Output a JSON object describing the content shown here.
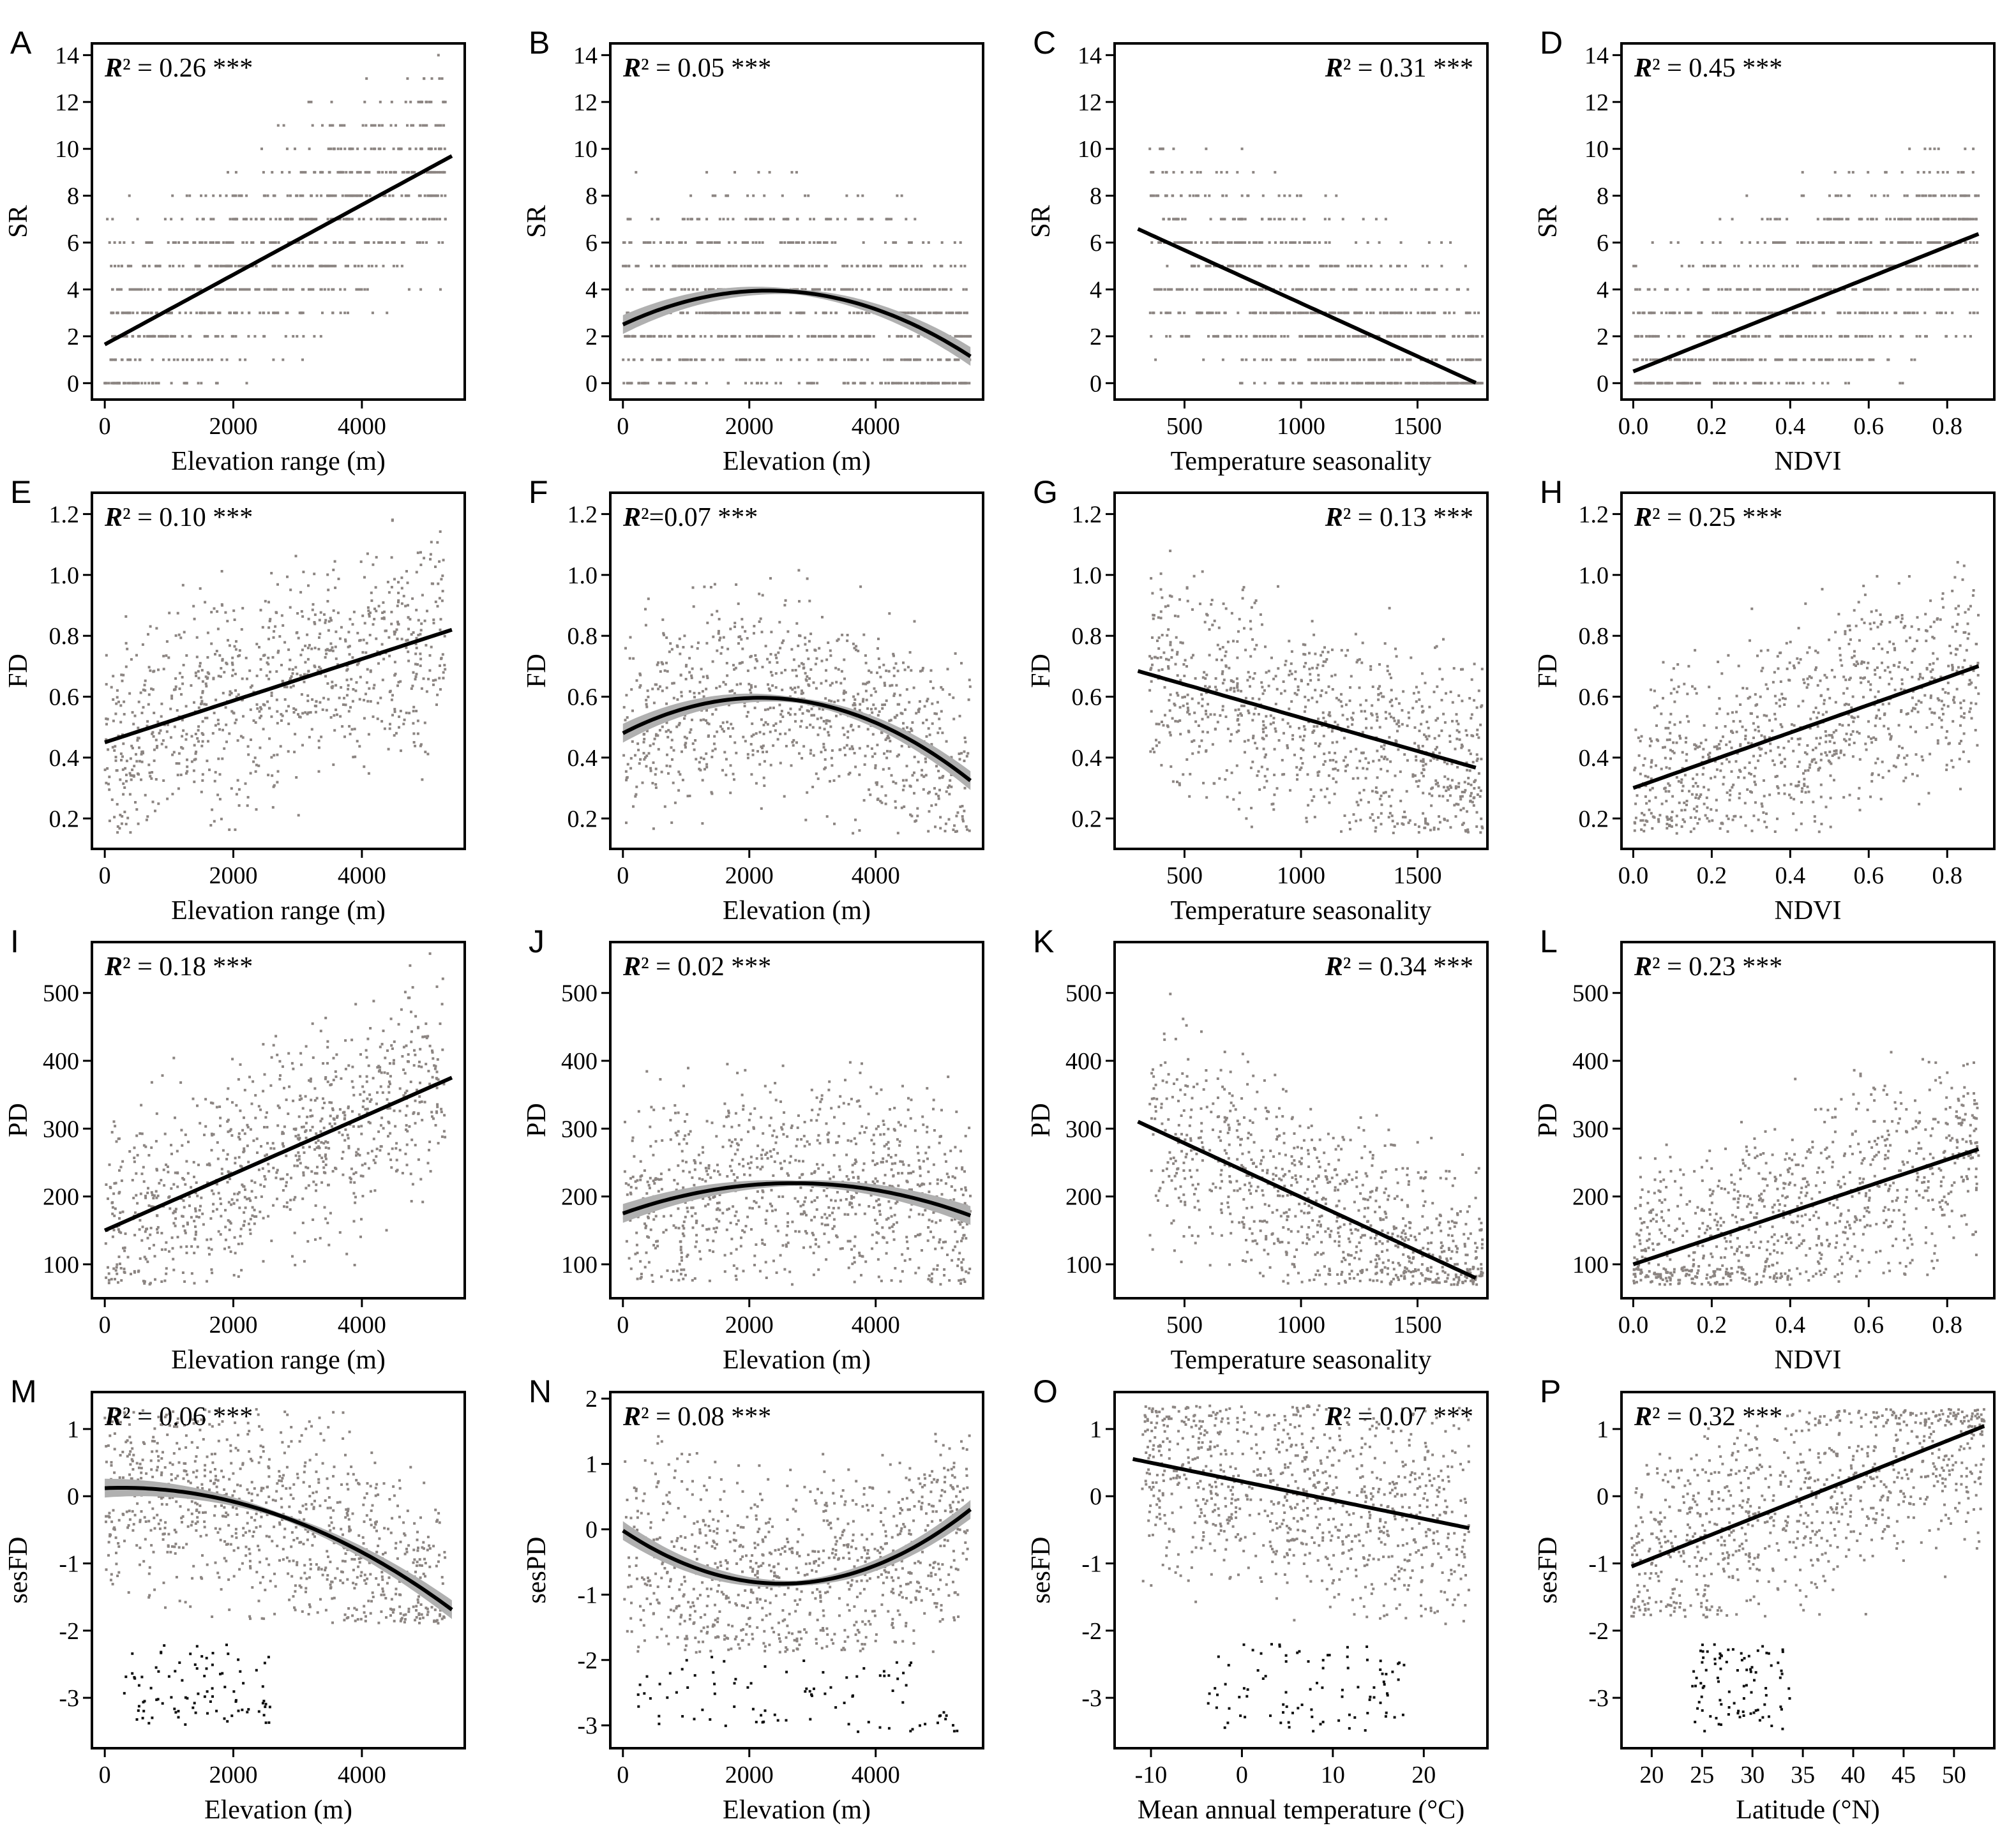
{
  "figure": {
    "background": "#ffffff",
    "point_color": "#8c8582",
    "outlier_color": "#111111",
    "line_color": "#000000",
    "ci_color": "#b0b0b0"
  },
  "chart_data": [
    {
      "letter": "A",
      "type": "scatter",
      "xlabel": "Elevation range (m)",
      "ylabel": "SR",
      "r2_value": "0.26",
      "r2_sig": "***",
      "r2_align": "left",
      "xlim": [
        -200,
        5600
      ],
      "ylim": [
        -0.7,
        14.5
      ],
      "xticks": [
        0,
        2000,
        4000
      ],
      "yticks": [
        0,
        2,
        4,
        6,
        8,
        10,
        12,
        14
      ],
      "fit": {
        "kind": "linear",
        "coef": [
          1.65,
          0.00149
        ],
        "x_range": [
          0,
          5400
        ],
        "ci": false
      },
      "points": {
        "mode": "discrete",
        "x_min": 0,
        "x_max": 5300,
        "levels": [
          0,
          1,
          2,
          3,
          4,
          5,
          6,
          7,
          8,
          9,
          10,
          11,
          12,
          13,
          14
        ],
        "seed": 11
      }
    },
    {
      "letter": "B",
      "type": "scatter",
      "xlabel": "Elevation (m)",
      "ylabel": "SR",
      "r2_value": "0.05",
      "r2_sig": "***",
      "r2_align": "left",
      "xlim": [
        -200,
        5700
      ],
      "ylim": [
        -0.7,
        14.5
      ],
      "xticks": [
        0,
        2000,
        4000
      ],
      "yticks": [
        0,
        2,
        4,
        6,
        8,
        10,
        12,
        14
      ],
      "fit": {
        "kind": "poly",
        "coef": [
          2.5,
          0.00126,
          -2.74e-07
        ],
        "x_range": [
          0,
          5500
        ],
        "ci": true
      },
      "points": {
        "mode": "discrete",
        "x_min": 0,
        "x_max": 5500,
        "levels": [
          0,
          1,
          2,
          3,
          4,
          5,
          6,
          7,
          8,
          9,
          10,
          11,
          12,
          13
        ],
        "seed": 12
      }
    },
    {
      "letter": "C",
      "type": "scatter",
      "xlabel": "Temperature seasonality",
      "ylabel": "SR",
      "r2_value": "0.31",
      "r2_sig": "***",
      "r2_align": "right",
      "xlim": [
        200,
        1800
      ],
      "ylim": [
        -0.7,
        14.5
      ],
      "xticks": [
        500,
        1000,
        1500
      ],
      "yticks": [
        0,
        2,
        4,
        6,
        8,
        10,
        12,
        14
      ],
      "fit": {
        "kind": "linear",
        "coef": [
          7.94,
          -0.00453
        ],
        "x_range": [
          300,
          1750
        ],
        "ci": false
      },
      "points": {
        "mode": "discrete",
        "x_min": 350,
        "x_max": 1780,
        "levels": [
          0,
          1,
          2,
          3,
          4,
          5,
          6,
          7,
          8,
          9,
          10,
          11,
          12,
          13,
          14
        ],
        "seed": 13
      }
    },
    {
      "letter": "D",
      "type": "scatter",
      "xlabel": "NDVI",
      "ylabel": "SR",
      "r2_value": "0.45",
      "r2_sig": "***",
      "r2_align": "left",
      "xlim": [
        -0.03,
        0.92
      ],
      "ylim": [
        -0.7,
        14.5
      ],
      "xticks": [
        0.0,
        0.2,
        0.4,
        0.6,
        0.8
      ],
      "xtick_labels": [
        "0.0",
        "0.2",
        "0.4",
        "0.6",
        "0.8"
      ],
      "yticks": [
        0,
        2,
        4,
        6,
        8,
        10,
        12,
        14
      ],
      "fit": {
        "kind": "linear",
        "coef": [
          0.5,
          6.67
        ],
        "x_range": [
          0.0,
          0.88
        ],
        "ci": false
      },
      "points": {
        "mode": "discrete",
        "x_min": 0.0,
        "x_max": 0.88,
        "levels": [
          0,
          1,
          2,
          3,
          4,
          5,
          6,
          7,
          8,
          9,
          10,
          11,
          12,
          13,
          14
        ],
        "seed": 14
      }
    },
    {
      "letter": "E",
      "type": "scatter",
      "xlabel": "Elevation range (m)",
      "ylabel": "FD",
      "r2_value": "0.10",
      "r2_sig": "***",
      "r2_align": "left",
      "xlim": [
        -200,
        5600
      ],
      "ylim": [
        0.1,
        1.27
      ],
      "xticks": [
        0,
        2000,
        4000
      ],
      "yticks": [
        0.2,
        0.4,
        0.6,
        0.8,
        1.0,
        1.2
      ],
      "ytick_labels": [
        "0.2",
        "0.4",
        "0.6",
        "0.8",
        "1.0",
        "1.2"
      ],
      "fit": {
        "kind": "linear",
        "coef": [
          0.45,
          6.85e-05
        ],
        "x_range": [
          0,
          5400
        ],
        "ci": false
      },
      "points": {
        "mode": "cloud",
        "x_min": 0,
        "x_max": 5300,
        "y_min": 0.15,
        "y_max": 1.25,
        "seed": 15
      }
    },
    {
      "letter": "F",
      "type": "scatter",
      "xlabel": "Elevation (m)",
      "ylabel": "FD",
      "r2_value": "0.07",
      "r2_sig": "***",
      "r2_align": "left",
      "r2_compact": true,
      "xlim": [
        -200,
        5700
      ],
      "ylim": [
        0.1,
        1.27
      ],
      "xticks": [
        0,
        2000,
        4000
      ],
      "yticks": [
        0.2,
        0.4,
        0.6,
        0.8,
        1.0,
        1.2
      ],
      "ytick_labels": [
        "0.2",
        "0.4",
        "0.6",
        "0.8",
        "1.0",
        "1.2"
      ],
      "fit": {
        "kind": "poly",
        "coef": [
          0.48,
          0.000107,
          -2.46e-08
        ],
        "x_range": [
          0,
          5500
        ],
        "ci": true
      },
      "points": {
        "mode": "cloud",
        "x_min": 0,
        "x_max": 5500,
        "y_min": 0.15,
        "y_max": 1.25,
        "seed": 16
      }
    },
    {
      "letter": "G",
      "type": "scatter",
      "xlabel": "Temperature seasonality",
      "ylabel": "FD",
      "r2_value": "0.13",
      "r2_sig": "***",
      "r2_align": "right",
      "xlim": [
        200,
        1800
      ],
      "ylim": [
        0.1,
        1.27
      ],
      "xticks": [
        500,
        1000,
        1500
      ],
      "yticks": [
        0.2,
        0.4,
        0.6,
        0.8,
        1.0,
        1.2
      ],
      "ytick_labels": [
        "0.2",
        "0.4",
        "0.6",
        "0.8",
        "1.0",
        "1.2"
      ],
      "fit": {
        "kind": "linear",
        "coef": [
          0.75,
          -0.000219
        ],
        "x_range": [
          300,
          1750
        ],
        "ci": false
      },
      "points": {
        "mode": "cloud",
        "x_min": 350,
        "x_max": 1780,
        "y_min": 0.15,
        "y_max": 1.25,
        "seed": 17
      }
    },
    {
      "letter": "H",
      "type": "scatter",
      "xlabel": "NDVI",
      "ylabel": "FD",
      "r2_value": "0.25",
      "r2_sig": "***",
      "r2_align": "left",
      "xlim": [
        -0.03,
        0.92
      ],
      "ylim": [
        0.1,
        1.27
      ],
      "xticks": [
        0.0,
        0.2,
        0.4,
        0.6,
        0.8
      ],
      "xtick_labels": [
        "0.0",
        "0.2",
        "0.4",
        "0.6",
        "0.8"
      ],
      "yticks": [
        0.2,
        0.4,
        0.6,
        0.8,
        1.0,
        1.2
      ],
      "ytick_labels": [
        "0.2",
        "0.4",
        "0.6",
        "0.8",
        "1.0",
        "1.2"
      ],
      "fit": {
        "kind": "linear",
        "coef": [
          0.3,
          0.455
        ],
        "x_range": [
          0.0,
          0.88
        ],
        "ci": false
      },
      "points": {
        "mode": "cloud",
        "x_min": 0.0,
        "x_max": 0.88,
        "y_min": 0.15,
        "y_max": 1.25,
        "seed": 18
      }
    },
    {
      "letter": "I",
      "type": "scatter",
      "xlabel": "Elevation range (m)",
      "ylabel": "PD",
      "r2_value": "0.18",
      "r2_sig": "***",
      "r2_align": "left",
      "xlim": [
        -200,
        5600
      ],
      "ylim": [
        50,
        575
      ],
      "xticks": [
        0,
        2000,
        4000
      ],
      "yticks": [
        100,
        200,
        300,
        400,
        500
      ],
      "fit": {
        "kind": "linear",
        "coef": [
          150,
          0.0417
        ],
        "x_range": [
          0,
          5400
        ],
        "ci": false
      },
      "points": {
        "mode": "cloud",
        "x_min": 0,
        "x_max": 5300,
        "y_min": 70,
        "y_max": 560,
        "seed": 19
      }
    },
    {
      "letter": "J",
      "type": "scatter",
      "xlabel": "Elevation (m)",
      "ylabel": "PD",
      "r2_value": "0.02",
      "r2_sig": "***",
      "r2_align": "left",
      "xlim": [
        -200,
        5700
      ],
      "ylim": [
        50,
        575
      ],
      "xticks": [
        0,
        2000,
        4000
      ],
      "yticks": [
        100,
        200,
        300,
        400,
        500
      ],
      "fit": {
        "kind": "poly",
        "coef": [
          175,
          0.033,
          -6.1e-06
        ],
        "x_range": [
          0,
          5500
        ],
        "ci": true
      },
      "points": {
        "mode": "cloud",
        "x_min": 0,
        "x_max": 5500,
        "y_min": 70,
        "y_max": 560,
        "seed": 20
      }
    },
    {
      "letter": "K",
      "type": "scatter",
      "xlabel": "Temperature seasonality",
      "ylabel": "PD",
      "r2_value": "0.34",
      "r2_sig": "***",
      "r2_align": "right",
      "xlim": [
        200,
        1800
      ],
      "ylim": [
        50,
        575
      ],
      "xticks": [
        500,
        1000,
        1500
      ],
      "yticks": [
        100,
        200,
        300,
        400,
        500
      ],
      "fit": {
        "kind": "linear",
        "coef": [
          358,
          -0.159
        ],
        "x_range": [
          300,
          1750
        ],
        "ci": false
      },
      "points": {
        "mode": "cloud",
        "x_min": 350,
        "x_max": 1780,
        "y_min": 70,
        "y_max": 560,
        "seed": 21
      }
    },
    {
      "letter": "L",
      "type": "scatter",
      "xlabel": "NDVI",
      "ylabel": "PD",
      "r2_value": "0.23",
      "r2_sig": "***",
      "r2_align": "left",
      "xlim": [
        -0.03,
        0.92
      ],
      "ylim": [
        50,
        575
      ],
      "xticks": [
        0.0,
        0.2,
        0.4,
        0.6,
        0.8
      ],
      "xtick_labels": [
        "0.0",
        "0.2",
        "0.4",
        "0.6",
        "0.8"
      ],
      "yticks": [
        100,
        200,
        300,
        400,
        500
      ],
      "fit": {
        "kind": "linear",
        "coef": [
          100,
          193
        ],
        "x_range": [
          0.0,
          0.88
        ],
        "ci": false
      },
      "points": {
        "mode": "cloud",
        "x_min": 0.0,
        "x_max": 0.88,
        "y_min": 70,
        "y_max": 560,
        "seed": 22
      }
    },
    {
      "letter": "M",
      "type": "scatter",
      "xlabel": "Elevation (m)",
      "ylabel": "sesFD",
      "r2_value": "0.06",
      "r2_sig": "***",
      "r2_align": "left",
      "xlim": [
        -200,
        5600
      ],
      "ylim": [
        -3.75,
        1.55
      ],
      "xticks": [
        0,
        2000,
        4000
      ],
      "yticks": [
        -3,
        -2,
        -1,
        0,
        1
      ],
      "fit": {
        "kind": "poly",
        "coef": [
          0.12,
          3.78e-05,
          -6.9e-08
        ],
        "x_range": [
          0,
          5400
        ],
        "ci": true
      },
      "points": {
        "mode": "cloud",
        "x_min": 0,
        "x_max": 5300,
        "y_min": -1.9,
        "y_max": 1.3,
        "outlier_y": [
          -3.4,
          -2.2
        ],
        "outlier_x": [
          300,
          2600
        ],
        "seed": 23
      }
    },
    {
      "letter": "N",
      "type": "scatter",
      "xlabel": "Elevation (m)",
      "ylabel": "sesPD",
      "r2_value": "0.08",
      "r2_sig": "***",
      "r2_align": "left",
      "xlim": [
        -200,
        5700
      ],
      "ylim": [
        -3.35,
        2.1
      ],
      "xticks": [
        0,
        2000,
        4000
      ],
      "yticks": [
        -3,
        -2,
        -1,
        0,
        1,
        2
      ],
      "fit": {
        "kind": "poly",
        "coef": [
          -0.02,
          -0.000645,
          1.28e-07
        ],
        "x_range": [
          0,
          5500
        ],
        "ci": true
      },
      "points": {
        "mode": "cloud",
        "x_min": 0,
        "x_max": 5500,
        "y_min": -1.9,
        "y_max": 1.5,
        "outlier_y": [
          -3.1,
          -1.95
        ],
        "outlier_x": [
          200,
          5300
        ],
        "seed": 24
      }
    },
    {
      "letter": "O",
      "type": "scatter",
      "xlabel": "Mean annual temperature (°C)",
      "ylabel": "sesFD",
      "r2_value": "0.07",
      "r2_sig": "***",
      "r2_align": "right",
      "xlim": [
        -14,
        27
      ],
      "ylim": [
        -3.75,
        1.55
      ],
      "xticks": [
        -10,
        0,
        10,
        20
      ],
      "yticks": [
        -3,
        -2,
        -1,
        0,
        1
      ],
      "fit": {
        "kind": "linear",
        "coef": [
          0.22,
          -0.0278
        ],
        "x_range": [
          -12,
          25
        ],
        "ci": false
      },
      "points": {
        "mode": "cloud",
        "x_min": -11,
        "x_max": 25,
        "y_min": -1.9,
        "y_max": 1.35,
        "outlier_y": [
          -3.5,
          -2.2
        ],
        "outlier_x": [
          -4,
          18
        ],
        "seed": 25
      }
    },
    {
      "letter": "P",
      "type": "scatter",
      "xlabel": "Latitude (°N)",
      "ylabel": "sesFD",
      "r2_value": "0.32",
      "r2_sig": "***",
      "r2_align": "left",
      "xlim": [
        17,
        54
      ],
      "ylim": [
        -3.75,
        1.55
      ],
      "xticks": [
        20,
        25,
        30,
        35,
        40,
        45,
        50
      ],
      "yticks": [
        -3,
        -2,
        -1,
        0,
        1
      ],
      "fit": {
        "kind": "linear",
        "coef": [
          -2.12,
          0.0597
        ],
        "x_range": [
          18,
          53
        ],
        "ci": false
      },
      "points": {
        "mode": "cloud",
        "x_min": 18,
        "x_max": 53,
        "y_min": -1.8,
        "y_max": 1.3,
        "outlier_y": [
          -3.5,
          -2.2
        ],
        "outlier_x": [
          24,
          34
        ],
        "seed": 26
      }
    }
  ]
}
